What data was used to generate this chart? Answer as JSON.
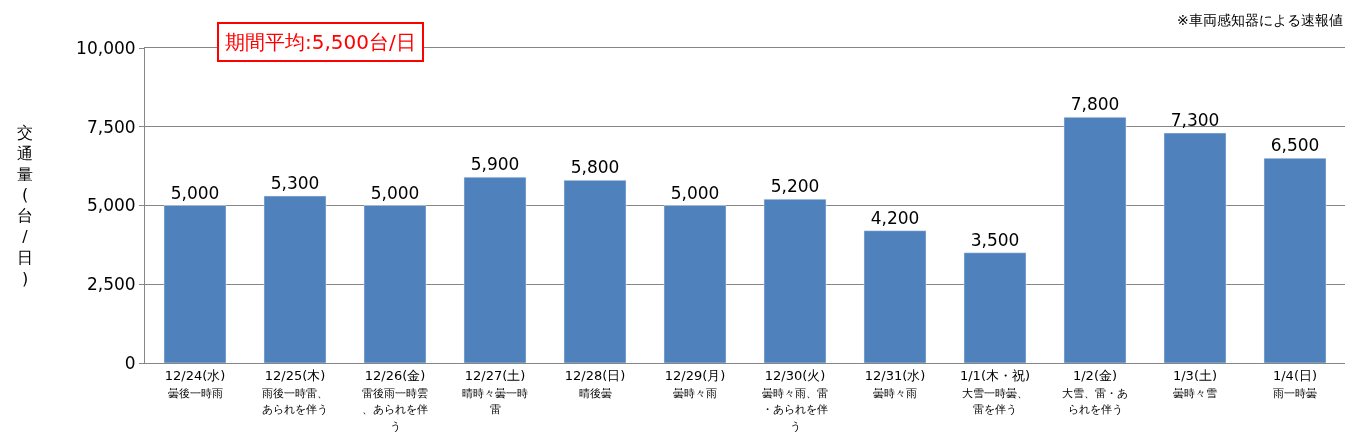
{
  "chart_data": {
    "type": "bar",
    "ylabel": "交通量(台/日)",
    "categories": [
      "12/24(水)\n曇後一時雨",
      "12/25(木)\n雨後一時雷、あられを伴う",
      "12/26(金)\n雷後雨一時雲、あられを伴う",
      "12/27(土)\n晴時々曇一時雷",
      "12/28(日)\n晴後曇",
      "12/29(月)\n曇時々雨",
      "12/30(火)\n曇時々雨、雷・あられを伴う",
      "12/31(水)\n曇時々雨",
      "1/1(木・祝)\n大雪一時曇、雷を伴う",
      "1/2(金)\n大雪、雷・あられを伴う",
      "1/3(土)\n曇時々雪",
      "1/4(日)\n雨一時曇"
    ],
    "values": [
      5000,
      5300,
      5000,
      5900,
      5800,
      5000,
      5200,
      4200,
      3500,
      7800,
      7300,
      6500
    ],
    "color": "#4f81bd",
    "value_labels": [
      "5,000",
      "5,300",
      "5,000",
      "5,900",
      "5,800",
      "5,000",
      "5,200",
      "4,200",
      "3,500",
      "7,800",
      "7,300",
      "6,500"
    ],
    "ylim": [
      0,
      10000
    ],
    "yticks": [
      {
        "value": 0,
        "label": "0"
      },
      {
        "value": 2500,
        "label": "2,500"
      },
      {
        "value": 5000,
        "label": "5,000"
      },
      {
        "value": 7500,
        "label": "7,500"
      },
      {
        "value": 10000,
        "label": "10,000"
      }
    ],
    "grid": "y",
    "annotations": [
      "期間平均:5,500台/日",
      "※車両感知器による速報値"
    ]
  }
}
